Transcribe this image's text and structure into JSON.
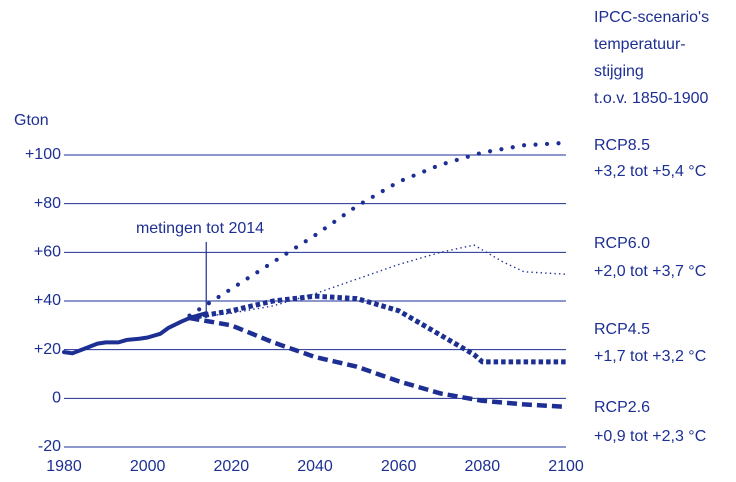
{
  "chart_data": {
    "type": "line",
    "y_label": "Gton",
    "legend_title": [
      "IPCC-scenario's",
      "temperatuur-",
      "stijging",
      "t.o.v. 1850-1900"
    ],
    "annotation": {
      "text": "metingen tot 2014",
      "x": 2014
    },
    "color": "#1d2f93",
    "grid": true,
    "xlim": [
      1980,
      2100
    ],
    "xticks": [
      1980,
      2000,
      2020,
      2040,
      2060,
      2080,
      2100
    ],
    "ylim": [
      -20,
      100
    ],
    "yticks": [
      {
        "value": 100,
        "label": "+100"
      },
      {
        "value": 80,
        "label": "+80"
      },
      {
        "value": 60,
        "label": "+60"
      },
      {
        "value": 40,
        "label": "+40"
      },
      {
        "value": 20,
        "label": "+20"
      },
      0,
      -20
    ],
    "series": [
      {
        "style": "solid",
        "x": [
          1980,
          1982,
          1985,
          1988,
          1990,
          1993,
          1995,
          1998,
          2000,
          2003,
          2005,
          2008,
          2010,
          2012,
          2014
        ],
        "values": [
          19,
          18.5,
          20.5,
          22.5,
          23,
          23,
          24,
          24.5,
          25,
          26.5,
          29,
          31.5,
          33,
          34,
          35
        ]
      },
      {
        "name": "RCP8.5",
        "range": "+3,2 tot +5,4 °C",
        "style": "dotted",
        "x": [
          2010,
          2020,
          2030,
          2040,
          2050,
          2060,
          2070,
          2080,
          2090,
          2100
        ],
        "values": [
          34,
          45,
          56,
          67,
          79,
          89,
          96,
          101,
          104,
          105
        ]
      },
      {
        "name": "RCP6.0",
        "range": "+2,0 tot +3,7 °C",
        "style": "fine-dotted",
        "x": [
          2010,
          2020,
          2030,
          2040,
          2050,
          2060,
          2070,
          2078,
          2085,
          2090,
          2100
        ],
        "values": [
          33,
          35,
          38,
          43,
          49,
          55,
          60,
          63,
          56,
          52,
          51
        ]
      },
      {
        "name": "RCP4.5",
        "range": "+1,7 tot +3,2 °C",
        "style": "dashed",
        "x": [
          2010,
          2020,
          2030,
          2040,
          2050,
          2060,
          2070,
          2078,
          2080,
          2090,
          2100
        ],
        "values": [
          33,
          36,
          40,
          42,
          41,
          36,
          26,
          18,
          15,
          15,
          15
        ]
      },
      {
        "name": "RCP2.6",
        "range": "+0,9 tot +2,3 °C",
        "style": "long-dashed",
        "x": [
          2010,
          2020,
          2030,
          2040,
          2050,
          2060,
          2070,
          2080,
          2090,
          2100
        ],
        "values": [
          33,
          30,
          23,
          17,
          13,
          7,
          2,
          -1,
          -2.5,
          -3.5
        ]
      }
    ]
  }
}
